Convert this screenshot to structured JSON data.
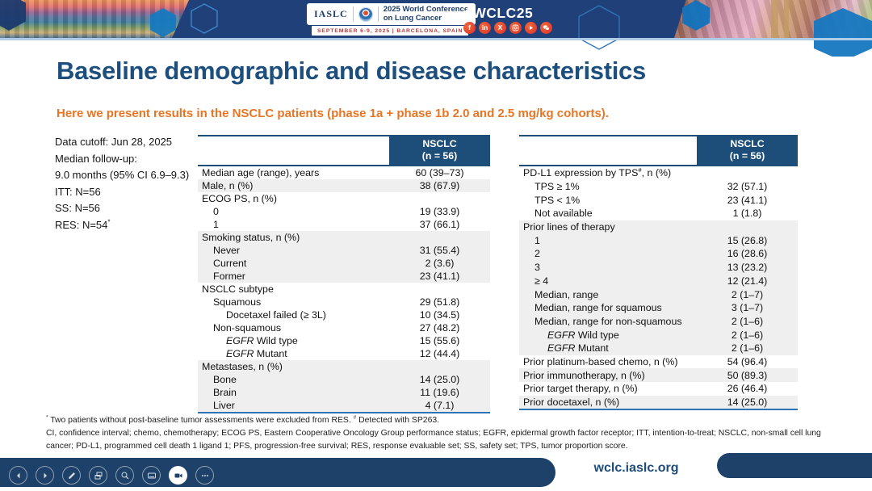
{
  "colors": {
    "banner_navy": "#20407a",
    "table_header_navy": "#1d4e79",
    "title_blue": "#1c4e7e",
    "subtitle_orange": "#e87524",
    "row_shade_gray": "#efefef",
    "table_bottom_blue": "#2e75b6",
    "social_red": "#e23b2e",
    "divider_light_blue": "#aecbe8",
    "footer_navy": "#1d4168"
  },
  "banner": {
    "iaslc_logo": "IASLC",
    "conference_line1": "2025 World Conference",
    "conference_line2": "on Lung Cancer",
    "date_location": "SEPTEMBER 6-9, 2025   |   BARCELONA, SPAIN",
    "hashtag": "#WCLC25",
    "social_icons": [
      "facebook",
      "linkedin",
      "x",
      "instagram",
      "youtube",
      "wechat"
    ]
  },
  "slide": {
    "title": "Baseline demographic and disease characteristics",
    "subtitle": "Here we present results in the NSCLC patients (phase 1a + phase 1b 2.0 and 2.5 mg/kg cohorts)."
  },
  "info_panel": {
    "lines": [
      {
        "text": "Data cutoff: Jun 28, 2025"
      },
      {
        "text": "Median follow-up:"
      },
      {
        "text": "9.0 months (95% CI 6.9–9.3)"
      },
      {
        "text": "ITT: N=56"
      },
      {
        "text": "SS: N=56"
      },
      {
        "text": "RES: N=54",
        "sup": "*"
      }
    ]
  },
  "tables": {
    "left": {
      "header": {
        "label": "",
        "line1": "NSCLC",
        "line2": "(n = 56)"
      },
      "rows": [
        {
          "parts": [
            {
              "t": "Median age (range), years"
            }
          ],
          "value": "60 (39–73)",
          "indent": 0,
          "shaded": false
        },
        {
          "parts": [
            {
              "t": "Male, n (%)"
            }
          ],
          "value": "38 (67.9)",
          "indent": 0,
          "shaded": true
        },
        {
          "parts": [
            {
              "t": "ECOG PS, n (%)"
            }
          ],
          "value": "",
          "indent": 0,
          "shaded": false
        },
        {
          "parts": [
            {
              "t": "0"
            }
          ],
          "value": "19 (33.9)",
          "indent": 1,
          "shaded": false
        },
        {
          "parts": [
            {
              "t": "1"
            }
          ],
          "value": "37 (66.1)",
          "indent": 1,
          "shaded": false
        },
        {
          "parts": [
            {
              "t": "Smoking status, n (%)"
            }
          ],
          "value": "",
          "indent": 0,
          "shaded": true
        },
        {
          "parts": [
            {
              "t": "Never"
            }
          ],
          "value": "31 (55.4)",
          "indent": 1,
          "shaded": true
        },
        {
          "parts": [
            {
              "t": "Current"
            }
          ],
          "value": "2 (3.6)",
          "indent": 1,
          "shaded": true
        },
        {
          "parts": [
            {
              "t": "Former"
            }
          ],
          "value": "23 (41.1)",
          "indent": 1,
          "shaded": true
        },
        {
          "parts": [
            {
              "t": "NSCLC subtype"
            }
          ],
          "value": "",
          "indent": 0,
          "shaded": false
        },
        {
          "parts": [
            {
              "t": "Squamous"
            }
          ],
          "value": "29 (51.8)",
          "indent": 1,
          "shaded": false
        },
        {
          "parts": [
            {
              "t": "Docetaxel failed (≥ 3L)"
            }
          ],
          "value": "10 (34.5)",
          "indent": 2,
          "shaded": false
        },
        {
          "parts": [
            {
              "t": "Non-squamous"
            }
          ],
          "value": "27 (48.2)",
          "indent": 1,
          "shaded": false
        },
        {
          "parts": [
            {
              "em": "EGFR"
            },
            {
              "t": " Wild type"
            }
          ],
          "value": "15 (55.6)",
          "indent": 2,
          "shaded": false
        },
        {
          "parts": [
            {
              "em": "EGFR"
            },
            {
              "t": " Mutant"
            }
          ],
          "value": "12 (44.4)",
          "indent": 2,
          "shaded": false
        },
        {
          "parts": [
            {
              "t": "Metastases, n (%)"
            }
          ],
          "value": "",
          "indent": 0,
          "shaded": true
        },
        {
          "parts": [
            {
              "t": "Bone"
            }
          ],
          "value": "14 (25.0)",
          "indent": 1,
          "shaded": true
        },
        {
          "parts": [
            {
              "t": "Brain"
            }
          ],
          "value": "11 (19.6)",
          "indent": 1,
          "shaded": true
        },
        {
          "parts": [
            {
              "t": "Liver"
            }
          ],
          "value": "4 (7.1)",
          "indent": 1,
          "shaded": true
        }
      ]
    },
    "right": {
      "header": {
        "label": "",
        "line1": "NSCLC",
        "line2": "(n = 56)"
      },
      "rows": [
        {
          "parts": [
            {
              "t": "PD-L1 expression by TPS"
            },
            {
              "sup": "#"
            },
            {
              "t": ", n (%)"
            }
          ],
          "value": "",
          "indent": 0,
          "shaded": false
        },
        {
          "parts": [
            {
              "t": "TPS ≥ 1%"
            }
          ],
          "value": "32 (57.1)",
          "indent": 1,
          "shaded": false
        },
        {
          "parts": [
            {
              "t": "TPS < 1%"
            }
          ],
          "value": "23 (41.1)",
          "indent": 1,
          "shaded": false
        },
        {
          "parts": [
            {
              "t": "Not available"
            }
          ],
          "value": "1 (1.8)",
          "indent": 1,
          "shaded": false
        },
        {
          "parts": [
            {
              "t": "Prior lines of therapy"
            }
          ],
          "value": "",
          "indent": 0,
          "shaded": true
        },
        {
          "parts": [
            {
              "t": "1"
            }
          ],
          "value": "15 (26.8)",
          "indent": 1,
          "shaded": true
        },
        {
          "parts": [
            {
              "t": "2"
            }
          ],
          "value": "16 (28.6)",
          "indent": 1,
          "shaded": true
        },
        {
          "parts": [
            {
              "t": "3"
            }
          ],
          "value": "13 (23.2)",
          "indent": 1,
          "shaded": true
        },
        {
          "parts": [
            {
              "t": "≥ 4"
            }
          ],
          "value": "12 (21.4)",
          "indent": 1,
          "shaded": true
        },
        {
          "parts": [
            {
              "t": "Median, range"
            }
          ],
          "value": "2 (1–7)",
          "indent": 1,
          "shaded": true
        },
        {
          "parts": [
            {
              "t": "Median, range for squamous"
            }
          ],
          "value": "3 (1–7)",
          "indent": 1,
          "shaded": true
        },
        {
          "parts": [
            {
              "t": "Median, range for non-squamous"
            }
          ],
          "value": "2 (1–6)",
          "indent": 1,
          "shaded": true
        },
        {
          "parts": [
            {
              "em": "EGFR"
            },
            {
              "t": " Wild type"
            }
          ],
          "value": "2 (1–6)",
          "indent": 2,
          "shaded": true
        },
        {
          "parts": [
            {
              "em": "EGFR"
            },
            {
              "t": " Mutant"
            }
          ],
          "value": "2 (1–6)",
          "indent": 2,
          "shaded": true
        },
        {
          "parts": [
            {
              "t": "Prior platinum-based chemo, n (%)"
            }
          ],
          "value": "54 (96.4)",
          "indent": 0,
          "shaded": false
        },
        {
          "parts": [
            {
              "t": "Prior immunotherapy, n (%)"
            }
          ],
          "value": "50 (89.3)",
          "indent": 0,
          "shaded": true
        },
        {
          "parts": [
            {
              "t": "Prior target therapy, n (%)"
            }
          ],
          "value": "26 (46.4)",
          "indent": 0,
          "shaded": false
        },
        {
          "parts": [
            {
              "t": "Prior docetaxel, n (%)"
            }
          ],
          "value": "14 (25.0)",
          "indent": 0,
          "shaded": true
        }
      ]
    }
  },
  "footnotes": {
    "lines": [
      {
        "parts": [
          {
            "sup": "*"
          },
          {
            "t": " Two patients without post-baseline tumor assessments were excluded from RES. "
          },
          {
            "sup": "#"
          },
          {
            "t": " Detected with SP263."
          }
        ]
      },
      {
        "parts": [
          {
            "t": "CI, confidence interval; chemo, chemotherapy; ECOG PS, Eastern Cooperative Oncology Group performance status; EGFR, epidermal growth factor receptor; ITT, intention-to-treat; NSCLC, non-small cell lung cancer; PD-L1, programmed cell death 1 ligand 1; PFS, progression-free survival; RES, response evaluable set; SS, safety set; TPS, tumor proportion score."
          }
        ]
      }
    ]
  },
  "footer": {
    "url": "wclc.iaslc.org"
  },
  "toolbar": {
    "icons": [
      {
        "name": "previous-slide",
        "active": false
      },
      {
        "name": "next-slide",
        "active": false
      },
      {
        "name": "pen",
        "active": false
      },
      {
        "name": "slides",
        "active": false
      },
      {
        "name": "zoom",
        "active": false
      },
      {
        "name": "captions",
        "active": false
      },
      {
        "name": "camera",
        "active": true
      },
      {
        "name": "more",
        "active": false
      }
    ]
  }
}
